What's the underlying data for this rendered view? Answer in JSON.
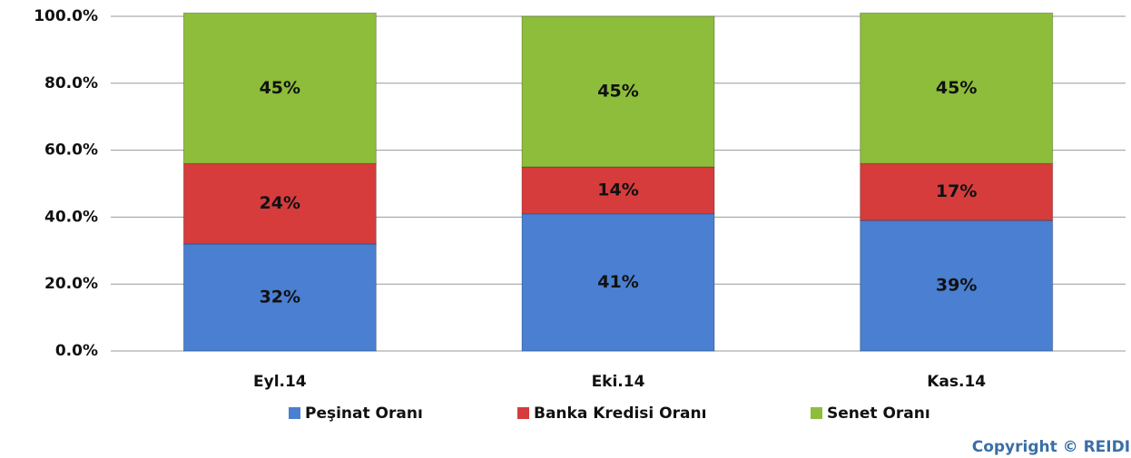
{
  "chart_data": {
    "type": "stacked_bar",
    "categories": [
      "Eyl.14",
      "Eki.14",
      "Kas.14"
    ],
    "series": [
      {
        "name": "Peşinat Oranı",
        "color": "#4a7fd1",
        "values": [
          32,
          41,
          39
        ],
        "value_labels": [
          "32%",
          "41%",
          "39%"
        ]
      },
      {
        "name": "Banka Kredisi Oranı",
        "color": "#d63c3c",
        "values": [
          24,
          14,
          17
        ],
        "value_labels": [
          "24%",
          "14%",
          "17%"
        ]
      },
      {
        "name": "Senet Oranı",
        "color": "#8dbd3a",
        "values": [
          45,
          45,
          45
        ],
        "value_labels": [
          "45%",
          "45%",
          "45%"
        ]
      }
    ],
    "ylim": [
      0,
      100
    ],
    "yticks": [
      {
        "value": 0,
        "label": "0.0%"
      },
      {
        "value": 20,
        "label": "20.0%"
      },
      {
        "value": 40,
        "label": "40.0%"
      },
      {
        "value": 60,
        "label": "60.0%"
      },
      {
        "value": 80,
        "label": "80.0%"
      },
      {
        "value": 100,
        "label": "100.0%"
      }
    ],
    "grid": true,
    "legend": "bottom",
    "annotation": "Copyright © REIDIN"
  }
}
